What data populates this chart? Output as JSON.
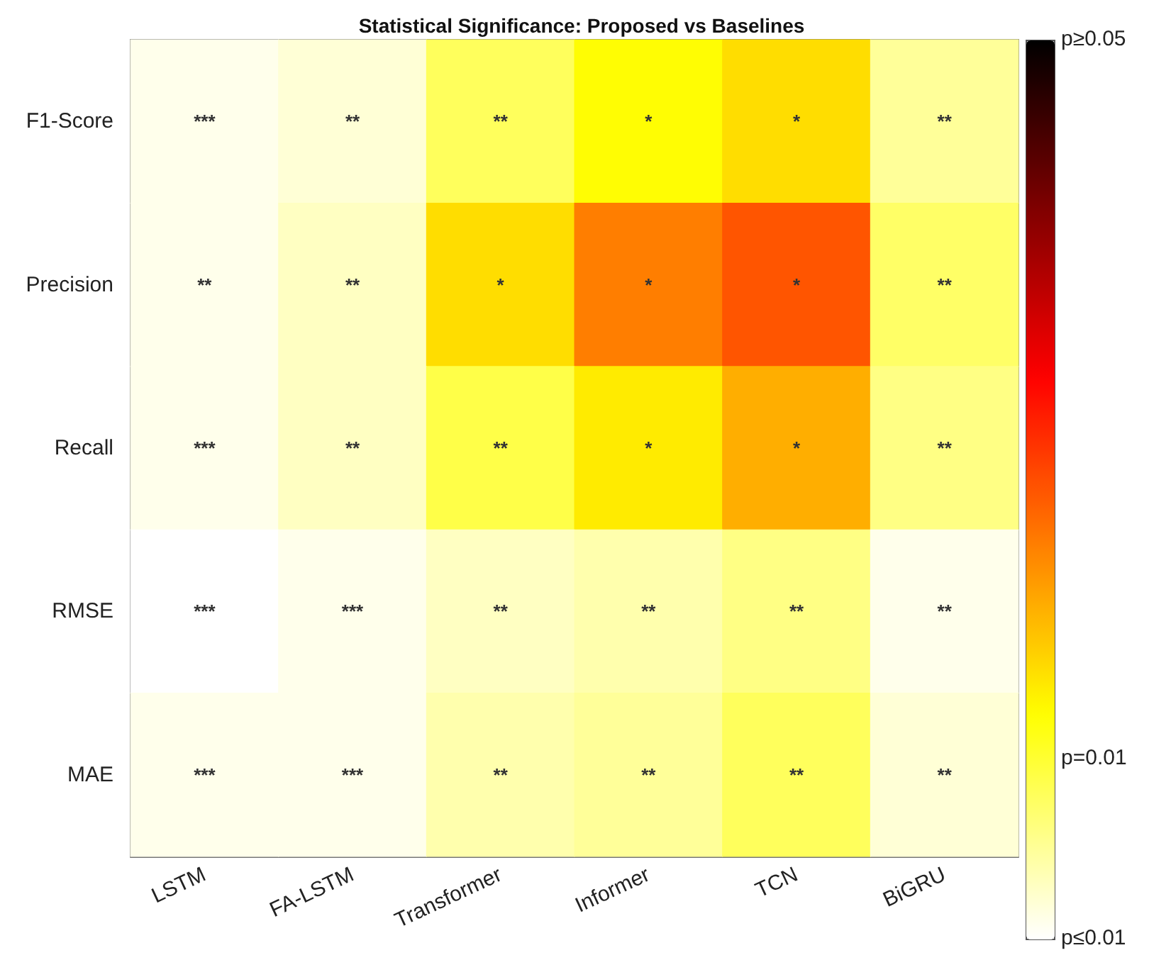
{
  "chart_data": {
    "type": "heatmap",
    "title": "Statistical Significance: Proposed vs Baselines",
    "categories": [
      "LSTM",
      "FA-LSTM",
      "Transformer",
      "Informer",
      "TCN",
      "BiGRU"
    ],
    "y_categories": [
      "F1-Score",
      "Precision",
      "Recall",
      "RMSE",
      "MAE"
    ],
    "cells": [
      [
        0.001,
        0.002,
        0.008,
        0.0125,
        0.015,
        0.005
      ],
      [
        0.001,
        0.003,
        0.015,
        0.022,
        0.025,
        0.0075
      ],
      [
        0.001,
        0.003,
        0.009,
        0.014,
        0.0185,
        0.006
      ],
      [
        0.0,
        0.001,
        0.003,
        0.004,
        0.006,
        0.001
      ],
      [
        0.001,
        0.001,
        0.004,
        0.005,
        0.008,
        0.002
      ]
    ],
    "cell_labels": [
      [
        "***",
        "**",
        "**",
        "*",
        "*",
        "**"
      ],
      [
        "**",
        "**",
        "*",
        "*",
        "*",
        "**"
      ],
      [
        "***",
        "**",
        "**",
        "*",
        "*",
        "**"
      ],
      [
        "***",
        "***",
        "**",
        "**",
        "**",
        "**"
      ],
      [
        "***",
        "***",
        "**",
        "**",
        "**",
        "**"
      ]
    ],
    "clim": [
      0,
      0.05
    ],
    "cticks": [
      {
        "value": 0,
        "label": "p≤0.01"
      },
      {
        "value": 0.01,
        "label": "p=0.01"
      },
      {
        "value": 0.05,
        "label": "p≥0.05"
      }
    ]
  }
}
